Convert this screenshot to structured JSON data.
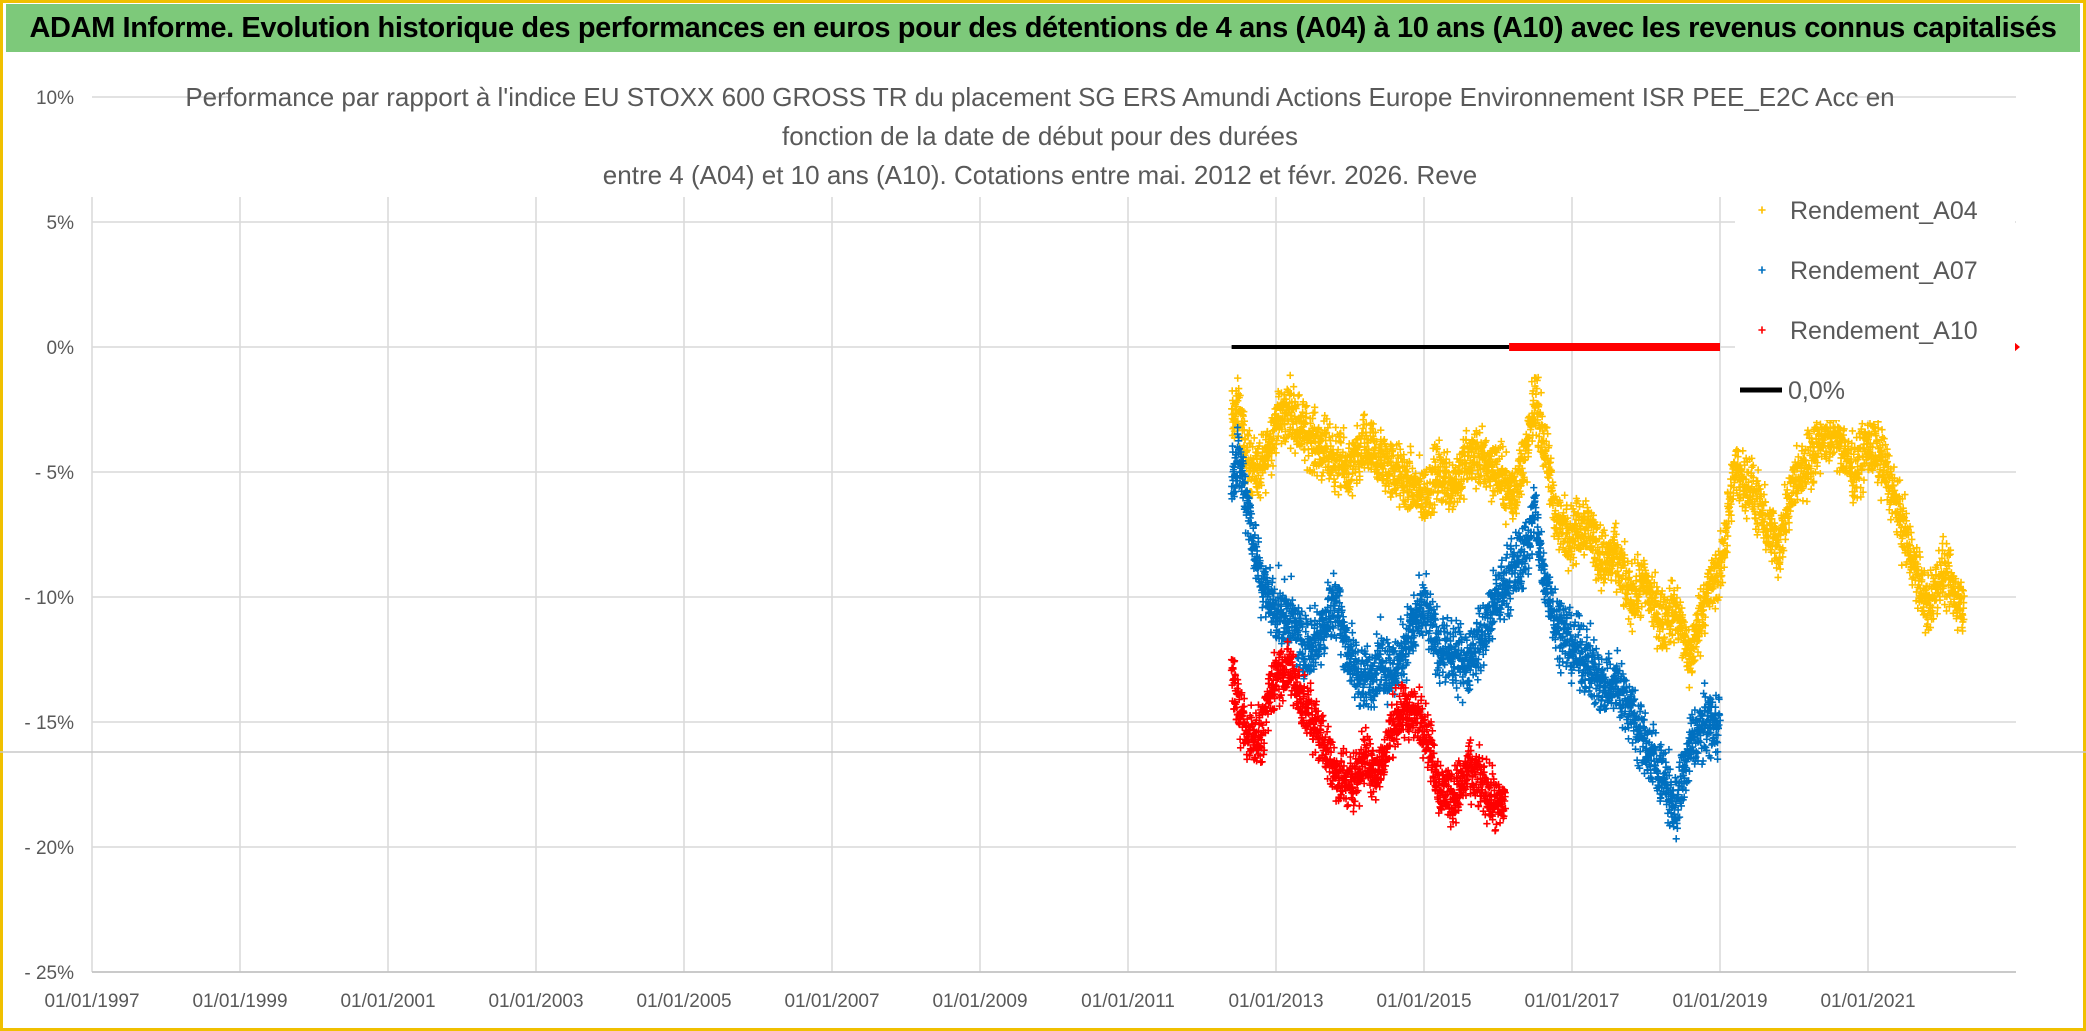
{
  "banner": {
    "title": "ADAM Informe. Evolution historique des performances en euros pour des détentions de 4 ans (A04) à 10 ans (A10) avec les revenus connus capitalisés"
  },
  "colors": {
    "banner_bg": "#7dc97a",
    "frame": "#f0c000",
    "grid": "#d9d9d9",
    "text": "#595959",
    "a04": "#ffc000",
    "a07": "#0070c0",
    "a10": "#ff0000",
    "zero": "#000000"
  },
  "chart_data": {
    "type": "scatter",
    "title_lines": [
      "Performance par rapport à l'indice EU STOXX 600 GROSS TR  du placement SG ERS Amundi Actions Europe Environnement ISR PEE_E2C Acc en",
      "fonction de la date de début pour des durées",
      "entre 4 (A04) et 10 ans (A10). Cotations entre mai. 2012 et févr. 2026. Reve"
    ],
    "x_ticks": [
      "01/01/1997",
      "01/01/1999",
      "01/01/2001",
      "01/01/2003",
      "01/01/2005",
      "01/01/2007",
      "01/01/2009",
      "01/01/2011",
      "01/01/2013",
      "01/01/2015",
      "01/01/2017",
      "01/01/2019",
      "01/01/2021"
    ],
    "y_ticks": [
      "10%",
      "5%",
      "0%",
      "- 5%",
      "- 10%",
      "- 15%",
      "- 20%",
      "- 25%"
    ],
    "y_tick_values": [
      10,
      5,
      0,
      -5,
      -10,
      -15,
      -20,
      -25
    ],
    "xlim": [
      1997.0,
      2023.0
    ],
    "ylim": [
      -25,
      10
    ],
    "x_unit": "year",
    "y_unit": "%",
    "series": [
      {
        "name": "Rendement_A04",
        "marker": "+",
        "color": "#ffc000",
        "x": [
          2012.4,
          2012.5,
          2012.6,
          2012.8,
          2013.0,
          2013.2,
          2013.4,
          2013.6,
          2013.8,
          2014.0,
          2014.2,
          2014.4,
          2014.6,
          2014.8,
          2015.0,
          2015.2,
          2015.4,
          2015.6,
          2015.8,
          2016.0,
          2016.2,
          2016.4,
          2016.5,
          2016.6,
          2016.8,
          2017.0,
          2017.2,
          2017.4,
          2017.6,
          2017.8,
          2018.0,
          2018.2,
          2018.4,
          2018.6,
          2018.8,
          2019.0,
          2019.2,
          2019.4,
          2019.6,
          2019.8,
          2020.0,
          2020.2,
          2020.4,
          2020.6,
          2020.8,
          2021.0,
          2021.2,
          2021.4,
          2021.6,
          2021.8,
          2022.0,
          2022.2,
          2022.3
        ],
        "y": [
          -3.0,
          -2.5,
          -4.5,
          -5.0,
          -3.0,
          -2.5,
          -3.5,
          -4.0,
          -4.5,
          -5.0,
          -4.0,
          -4.5,
          -5.0,
          -5.5,
          -6.0,
          -5.0,
          -5.5,
          -4.5,
          -4.5,
          -5.0,
          -6.0,
          -4.0,
          -2.0,
          -3.5,
          -7.0,
          -7.5,
          -7.0,
          -8.5,
          -8.5,
          -10.0,
          -9.5,
          -11.0,
          -10.5,
          -12.5,
          -10.0,
          -9.0,
          -5.0,
          -5.5,
          -7.0,
          -8.0,
          -5.5,
          -4.5,
          -3.5,
          -3.5,
          -5.0,
          -4.0,
          -4.5,
          -6.5,
          -8.5,
          -10.5,
          -9.0,
          -10.0,
          -10.5
        ],
        "spread": 1.5
      },
      {
        "name": "Rendement_A07",
        "marker": "+",
        "color": "#0070c0",
        "x": [
          2012.4,
          2012.5,
          2012.6,
          2012.8,
          2013.0,
          2013.2,
          2013.4,
          2013.6,
          2013.8,
          2014.0,
          2014.2,
          2014.4,
          2014.6,
          2014.8,
          2015.0,
          2015.2,
          2015.4,
          2015.6,
          2015.8,
          2016.0,
          2016.2,
          2016.4,
          2016.5,
          2016.6,
          2016.8,
          2017.0,
          2017.2,
          2017.4,
          2017.6,
          2017.8,
          2018.0,
          2018.2,
          2018.4,
          2018.6,
          2018.8,
          2019.0
        ],
        "y": [
          -5.0,
          -4.5,
          -6.0,
          -9.5,
          -10.5,
          -11.0,
          -12.0,
          -11.5,
          -10.0,
          -12.5,
          -13.5,
          -12.5,
          -13.0,
          -11.5,
          -10.5,
          -12.0,
          -12.5,
          -12.5,
          -11.5,
          -10.0,
          -9.0,
          -8.0,
          -6.5,
          -9.0,
          -11.0,
          -12.0,
          -12.5,
          -13.5,
          -13.5,
          -14.5,
          -16.0,
          -17.0,
          -18.5,
          -16.0,
          -15.0,
          -15.0
        ],
        "spread": 1.6
      },
      {
        "name": "Rendement_A10",
        "marker": "+",
        "color": "#ff0000",
        "x": [
          2012.4,
          2012.5,
          2012.6,
          2012.8,
          2013.0,
          2013.2,
          2013.4,
          2013.6,
          2013.8,
          2014.0,
          2014.2,
          2014.4,
          2014.6,
          2014.8,
          2015.0,
          2015.2,
          2015.4,
          2015.6,
          2015.8,
          2016.0,
          2016.1
        ],
        "y": [
          -13.0,
          -14.5,
          -15.5,
          -15.5,
          -13.0,
          -13.0,
          -14.5,
          -15.5,
          -17.0,
          -17.5,
          -16.5,
          -17.0,
          -15.0,
          -14.5,
          -15.0,
          -17.5,
          -18.0,
          -17.0,
          -17.5,
          -18.5,
          -18.0
        ],
        "spread": 1.4
      }
    ],
    "zero_line": {
      "name": "0,0%",
      "value": 0,
      "segments": [
        {
          "x_start": 2012.4,
          "x_end": 2016.15,
          "color": "#000000",
          "width_label": "thin"
        },
        {
          "x_start": 2016.15,
          "x_end": 2019.0,
          "color": "#ff0000",
          "width_label": "thick"
        }
      ],
      "edge_marker": {
        "x": 2023.0,
        "color": "#ff0000"
      }
    },
    "legend": {
      "position": "top-right",
      "entries": [
        "Rendement_A04",
        "Rendement_A07",
        "Rendement_A10",
        "0,0%"
      ]
    }
  }
}
